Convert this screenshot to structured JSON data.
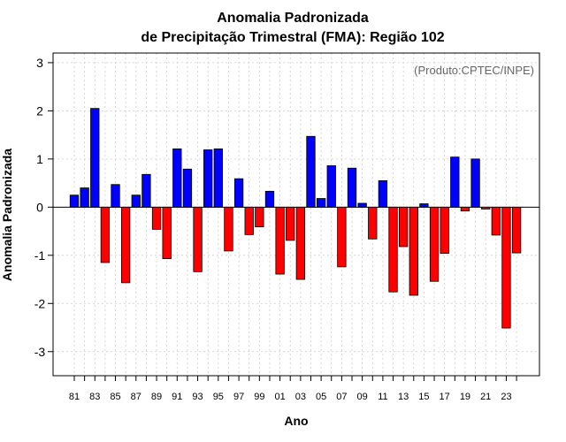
{
  "chart_data": {
    "type": "bar",
    "title": [
      "Anomalia Padronizada",
      "de Precipitação Trimestral (FMA): Região 102"
    ],
    "xlabel": "Ano",
    "ylabel": "Anomalia Padronizada",
    "annotation": "(Produto:CPTEC/INPE)",
    "ylim": [
      -3.5,
      3.2
    ],
    "yticks": [
      -3,
      -2,
      -1,
      0,
      1,
      2,
      3
    ],
    "ytick_labels": [
      "-3",
      "-2",
      "-1",
      "0",
      "1",
      "2",
      "3"
    ],
    "grid": true,
    "categories": [
      "81",
      "82",
      "83",
      "84",
      "85",
      "86",
      "87",
      "88",
      "89",
      "90",
      "91",
      "92",
      "93",
      "94",
      "95",
      "96",
      "97",
      "98",
      "99",
      "00",
      "01",
      "02",
      "03",
      "04",
      "05",
      "06",
      "07",
      "08",
      "09",
      "10",
      "11",
      "12",
      "13",
      "14",
      "15",
      "16",
      "17",
      "18",
      "19",
      "20",
      "21",
      "22",
      "23",
      "24"
    ],
    "xtick_labels": [
      "81",
      "83",
      "85",
      "87",
      "89",
      "91",
      "93",
      "95",
      "97",
      "99",
      "01",
      "03",
      "05",
      "07",
      "09",
      "11",
      "13",
      "15",
      "17",
      "19",
      "21",
      "23"
    ],
    "values": [
      0.25,
      0.4,
      2.05,
      -1.15,
      0.47,
      -1.57,
      0.25,
      0.68,
      -0.46,
      -1.07,
      1.21,
      0.79,
      -1.34,
      1.19,
      1.21,
      -0.91,
      0.59,
      -0.57,
      -0.41,
      0.33,
      -1.39,
      -0.69,
      -1.5,
      1.47,
      0.18,
      0.86,
      -1.24,
      0.81,
      0.08,
      -0.66,
      0.55,
      -1.76,
      -0.82,
      -1.83,
      0.07,
      -1.54,
      -0.96,
      1.04,
      -0.08,
      1.0,
      -0.04,
      -0.58,
      -2.51,
      -0.95
    ],
    "colors": {
      "positive": "#0000ff",
      "negative": "#ff0000",
      "edge": "#000000",
      "grid": "#cccccc",
      "zero_line": "#000000"
    }
  }
}
